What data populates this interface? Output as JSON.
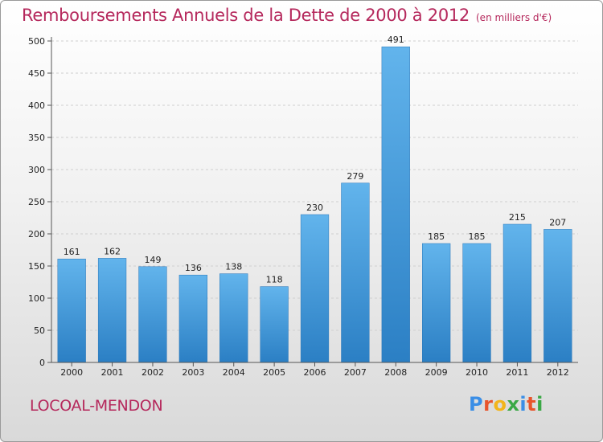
{
  "header": {
    "title": "Remboursements Annuels de la Dette de 2000 à 2012",
    "subtitle": "(en milliers d'€)"
  },
  "footer": {
    "commune": "LOCOAL-MENDON",
    "logo_letters": [
      "P",
      "r",
      "o",
      "x",
      "i",
      "t",
      "i"
    ],
    "logo_colors": [
      "#3a8ee6",
      "#e8542b",
      "#f2b51b",
      "#3aa845",
      "#3a8ee6",
      "#e8542b",
      "#3aa845"
    ]
  },
  "colors": {
    "title": "#b5285c",
    "bar_light": "#62b4ec",
    "bar_dark": "#2b7fc4"
  },
  "chart_data": {
    "type": "bar",
    "title": "Remboursements Annuels de la Dette de 2000 à 2012",
    "subtitle": "(en milliers d'€)",
    "categories": [
      "2000",
      "2001",
      "2002",
      "2003",
      "2004",
      "2005",
      "2006",
      "2007",
      "2008",
      "2009",
      "2010",
      "2011",
      "2012"
    ],
    "values": [
      161,
      162,
      149,
      136,
      138,
      118,
      230,
      279,
      491,
      185,
      185,
      215,
      207
    ],
    "ylim": [
      0,
      500
    ],
    "yticks": [
      0,
      50,
      100,
      150,
      200,
      250,
      300,
      350,
      400,
      450,
      500
    ],
    "grid": true,
    "legend": "none"
  }
}
